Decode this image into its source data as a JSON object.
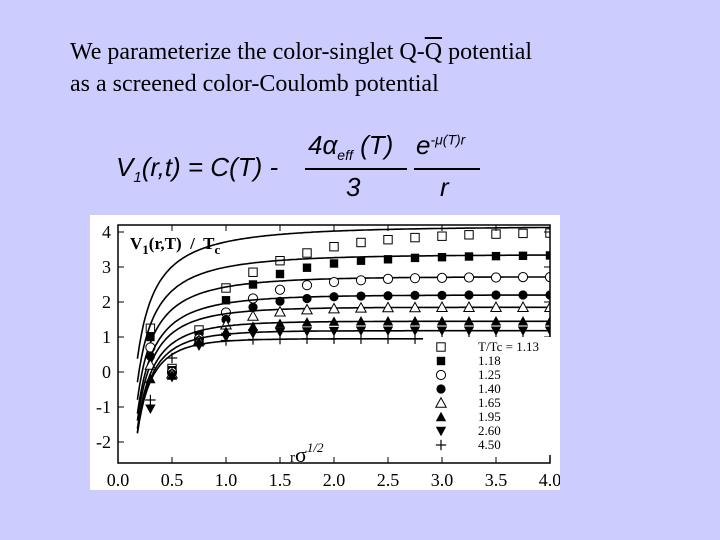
{
  "heading": {
    "line1_pre": "We parameterize the color-singlet Q-",
    "line1_qbar": "Q",
    "line1_post": " potential",
    "line2": "as a screened color-Coulomb potential"
  },
  "formula": {
    "lhs_v": "V",
    "lhs_sub": "1",
    "lhs_rest": "(r,t) = C(T) -",
    "num_pre": "4α",
    "num_sub": "eff",
    "num_post": " (T)",
    "exp_base": "e",
    "exp_sup": "-μ(T)r",
    "den1": "3",
    "den2": "r"
  },
  "chart_data": {
    "type": "scatter",
    "title": "V1(r,T) / Tc",
    "title_parts": {
      "v": "V",
      "sub1": "1",
      "mid": "(r,T)  /  T",
      "subc": "c"
    },
    "xlabel": "rσ1/2",
    "xlabel_parts": {
      "r": "r",
      "sigma": "σ",
      "sup": "1/2"
    },
    "xlim": [
      0.0,
      4.0
    ],
    "ylim": [
      -2.6,
      4.2
    ],
    "xticks": [
      "0.0",
      "0.5",
      "1.0",
      "1.5",
      "2.0",
      "2.5",
      "3.0",
      "3.5",
      "4.0"
    ],
    "yticks": [
      "4",
      "3",
      "2",
      "1",
      "0",
      "-1",
      "-2"
    ],
    "legend_position": "lower-right",
    "legend_header": "T/Tc = 1.13",
    "x": [
      0.3,
      0.5,
      0.75,
      1.0,
      1.25,
      1.5,
      1.75,
      2.0,
      2.25,
      2.5,
      2.75,
      3.0,
      3.25,
      3.5,
      3.75,
      4.0
    ],
    "series": [
      {
        "name": "T/Tc = 1.13",
        "marker": "square-open",
        "C": 4.15,
        "a": 0.75,
        "mu": 0.55,
        "values": [
          1.25,
          0.1,
          1.2,
          2.4,
          2.85,
          3.18,
          3.4,
          3.58,
          3.7,
          3.78,
          3.84,
          3.88,
          3.92,
          3.94,
          3.96,
          3.97
        ]
      },
      {
        "name": "1.18",
        "marker": "square-filled",
        "C": 3.35,
        "a": 0.75,
        "mu": 0.75,
        "values": [
          1.0,
          0.05,
          1.05,
          2.05,
          2.5,
          2.8,
          2.98,
          3.1,
          3.18,
          3.22,
          3.26,
          3.28,
          3.3,
          3.31,
          3.32,
          3.33
        ]
      },
      {
        "name": "1.25",
        "marker": "circle-open",
        "C": 2.72,
        "a": 0.75,
        "mu": 0.95,
        "values": [
          0.7,
          0.0,
          0.95,
          1.7,
          2.1,
          2.35,
          2.48,
          2.57,
          2.62,
          2.66,
          2.68,
          2.69,
          2.7,
          2.7,
          2.71,
          2.71
        ]
      },
      {
        "name": "1.40",
        "marker": "circle-filled",
        "C": 2.2,
        "a": 0.75,
        "mu": 1.15,
        "values": [
          0.45,
          -0.05,
          0.9,
          1.5,
          1.85,
          2.02,
          2.1,
          2.15,
          2.17,
          2.18,
          2.19,
          2.19,
          2.2,
          2.2,
          2.2,
          2.2
        ]
      },
      {
        "name": "1.65",
        "marker": "triangle-open",
        "C": 1.85,
        "a": 0.75,
        "mu": 1.4,
        "values": [
          0.2,
          -0.05,
          0.9,
          1.35,
          1.6,
          1.72,
          1.78,
          1.81,
          1.83,
          1.84,
          1.84,
          1.85,
          1.85,
          1.85,
          1.85,
          1.85
        ]
      },
      {
        "name": "1.95",
        "marker": "triangle-filled",
        "C": 1.45,
        "a": 0.75,
        "mu": 1.7,
        "values": [
          -0.2,
          -0.1,
          0.85,
          1.15,
          1.3,
          1.38,
          1.42,
          1.44,
          1.45,
          1.45,
          1.45,
          1.45,
          1.45,
          1.45,
          1.45,
          1.45
        ]
      },
      {
        "name": "2.60",
        "marker": "triangle-down-filled",
        "C": 1.18,
        "a": 0.75,
        "mu": 2.0,
        "values": [
          -1.05,
          -0.15,
          0.75,
          1.0,
          1.1,
          1.14,
          1.16,
          1.17,
          1.18,
          1.18,
          1.18,
          1.18,
          1.18,
          1.18,
          1.18,
          1.18
        ]
      },
      {
        "name": "4.50",
        "marker": "plus",
        "C": 0.95,
        "a": 0.75,
        "mu": 2.4,
        "values": [
          -0.8,
          0.4,
          0.8,
          0.9,
          0.93,
          0.94,
          0.95,
          0.95,
          0.95,
          0.95,
          0.95,
          0.95,
          0.95,
          0.95,
          0.95,
          0.95
        ]
      }
    ]
  }
}
